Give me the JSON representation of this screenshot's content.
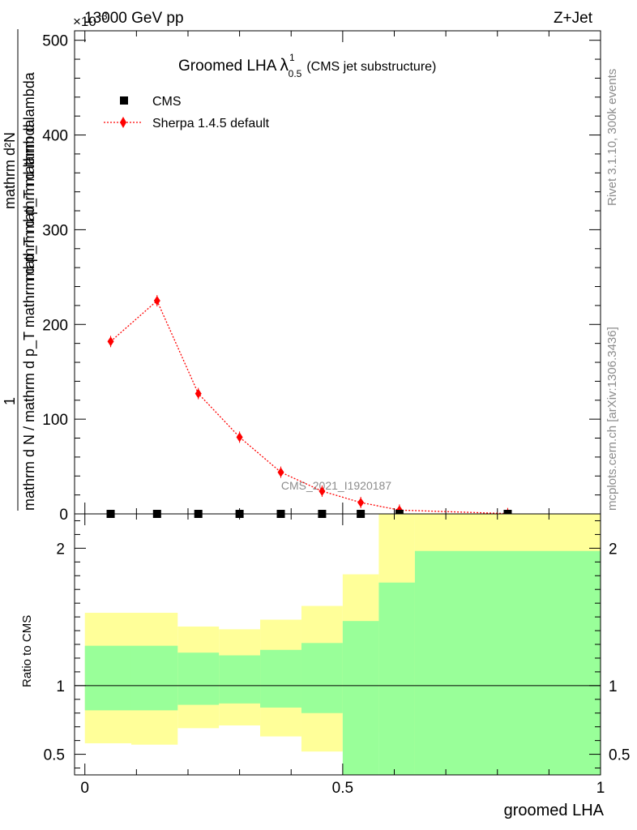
{
  "header": {
    "left_text": "13000 GeV pp",
    "right_text": "Z+Jet",
    "exponent_label": "×10",
    "exponent_power": "−3"
  },
  "side_text": {
    "rivet": "Rivet 3.1.10,  300k events",
    "mcplots": "mcplots.cern.ch [arXiv:1306.3436]"
  },
  "watermark": "CMS_2021_I1920187",
  "chart_data": [
    {
      "type": "scatter",
      "title": "Groomed LHA",
      "title_symbol": "λ",
      "title_sup": "1",
      "title_sub": "0.5",
      "subtitle": "(CMS jet substructure)",
      "ylabel_numerator": "1",
      "ylabel_denominator": "mathrm d N / mathrm d p_T mathrm d p_T mathrm d lambda",
      "ylabel_fraction_top": "mathrm d²N",
      "ylabel_fraction_bottom": "mathrm d p_T mathrm d lambda",
      "ylim": [
        0,
        510
      ],
      "yticks": [
        0,
        100,
        200,
        300,
        400,
        500
      ],
      "xlim": [
        -0.02,
        1.0
      ],
      "legend_position": "top-left",
      "series": [
        {
          "name": "CMS",
          "marker": "square",
          "color": "#000000",
          "x": [
            0.05,
            0.14,
            0.22,
            0.3,
            0.38,
            0.46,
            0.535,
            0.61,
            0.82
          ],
          "values": [
            0,
            0,
            0,
            0,
            0,
            0,
            0,
            0,
            0
          ]
        },
        {
          "name": "Sherpa 1.4.5 default",
          "marker": "diamond",
          "line": "dotted",
          "color": "#ff0000",
          "x": [
            0.05,
            0.14,
            0.22,
            0.3,
            0.38,
            0.46,
            0.535,
            0.61,
            0.82
          ],
          "values": [
            182,
            225,
            127,
            81,
            44,
            24,
            12,
            4,
            0.3
          ]
        }
      ]
    },
    {
      "type": "area",
      "ylabel": "Ratio to CMS",
      "xlabel": "groomed LHA",
      "xlim": [
        -0.02,
        1.0
      ],
      "ylim": [
        0.35,
        2.25
      ],
      "xticks": [
        0,
        0.5,
        1
      ],
      "xtick_labels": [
        "0",
        "0.5",
        "1"
      ],
      "yticks": [
        0.5,
        1,
        2
      ],
      "ytick_labels": [
        "0.5",
        "1",
        "2"
      ],
      "reference_line": 1,
      "bin_edges": [
        0.0,
        0.09,
        0.18,
        0.26,
        0.34,
        0.42,
        0.5,
        0.57,
        0.64,
        1.0
      ],
      "inner_band": {
        "color": "#99ff99",
        "low": [
          0.82,
          0.82,
          0.86,
          0.87,
          0.84,
          0.8,
          0.35,
          0.35,
          0.35
        ],
        "high": [
          1.29,
          1.29,
          1.24,
          1.22,
          1.26,
          1.31,
          1.47,
          1.75,
          1.98
        ]
      },
      "outer_band": {
        "color": "#ffff99",
        "low": [
          0.58,
          0.57,
          0.69,
          0.71,
          0.63,
          0.52,
          0.66,
          0.35,
          0.35
        ],
        "high": [
          1.53,
          1.53,
          1.43,
          1.41,
          1.48,
          1.58,
          1.81,
          2.25,
          2.25
        ]
      }
    }
  ]
}
